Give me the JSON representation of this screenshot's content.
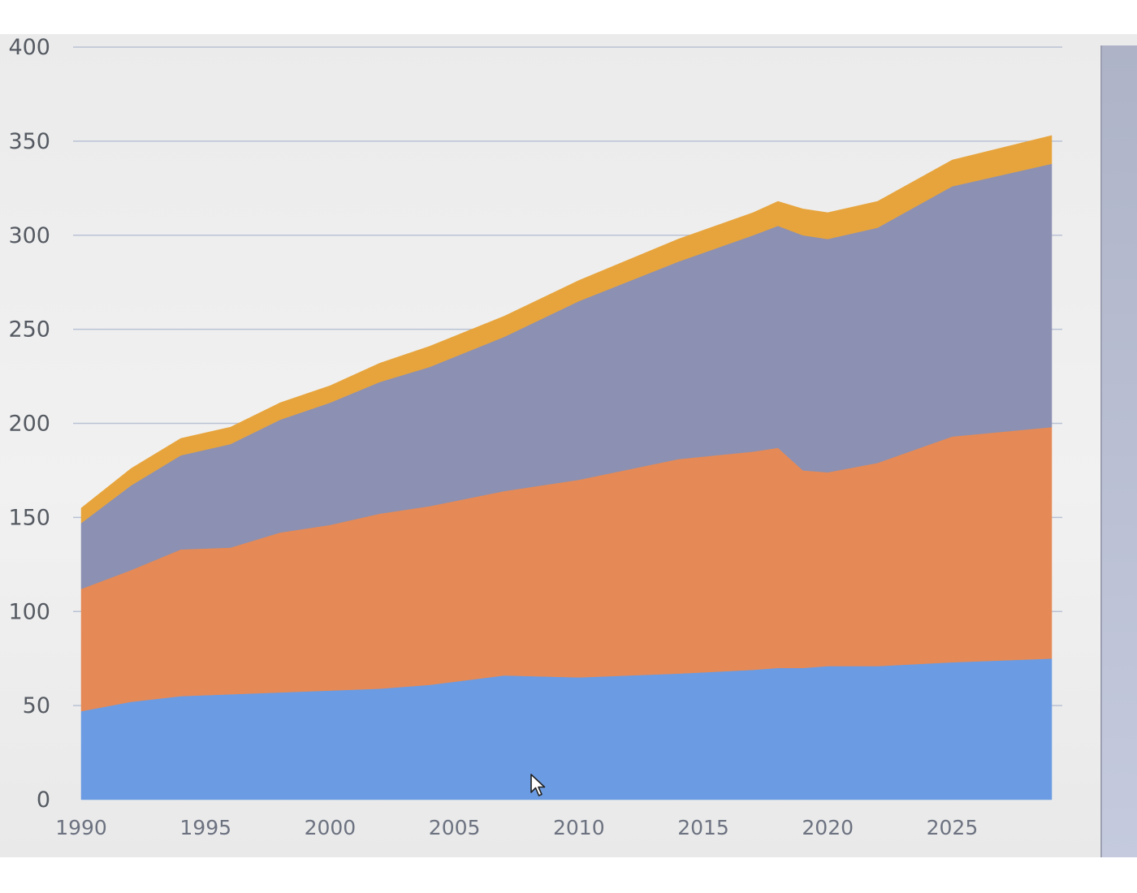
{
  "chart_data": {
    "type": "area",
    "stacked": true,
    "title": "",
    "xlabel": "",
    "ylabel": "",
    "ylim": [
      0,
      400
    ],
    "xlim": [
      1990,
      2029
    ],
    "grid": true,
    "legend": "none",
    "y_ticks": [
      "0",
      "50",
      "100",
      "150",
      "200",
      "250",
      "300",
      "350",
      "400"
    ],
    "x_ticks": [
      "1990",
      "1995",
      "2000",
      "2005",
      "2010",
      "2015",
      "2020",
      "2025"
    ],
    "x": [
      1990,
      1992,
      1994,
      1996,
      1998,
      2000,
      2002,
      2004,
      2007,
      2010,
      2014,
      2017,
      2018,
      2019,
      2020,
      2022,
      2025,
      2029
    ],
    "series": [
      {
        "color": "#6b9be3",
        "values": [
          47,
          52,
          55,
          56,
          57,
          58,
          59,
          61,
          66,
          65,
          67,
          69,
          70,
          70,
          71,
          71,
          73,
          75
        ]
      },
      {
        "color": "#e58a56",
        "values": [
          65,
          70,
          78,
          78,
          85,
          88,
          93,
          95,
          98,
          105,
          114,
          116,
          117,
          105,
          103,
          108,
          120,
          123
        ]
      },
      {
        "color": "#8c90b2",
        "values": [
          35,
          45,
          50,
          55,
          60,
          65,
          70,
          74,
          82,
          95,
          105,
          115,
          118,
          125,
          124,
          125,
          133,
          140
        ]
      },
      {
        "color": "#e7a43c",
        "values": [
          8,
          9,
          9,
          9,
          9,
          9,
          10,
          11,
          11,
          11,
          12,
          12,
          13,
          14,
          14,
          14,
          14,
          15
        ]
      }
    ]
  },
  "colors": {
    "grid": "#b9c2d4",
    "baseline": "#8894a8"
  }
}
